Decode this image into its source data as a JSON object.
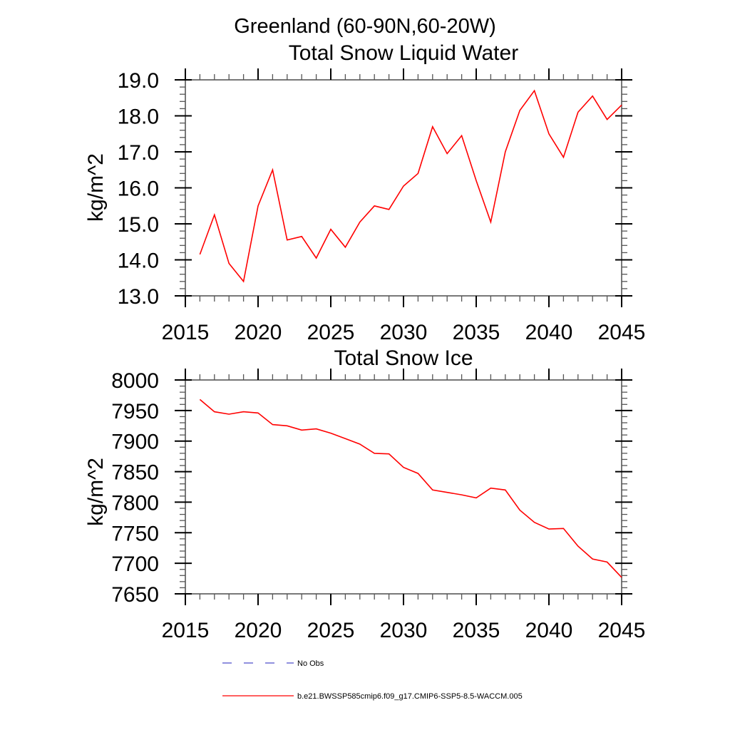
{
  "header": {
    "region_title": "Greenland (60-90N,60-20W)"
  },
  "chart_data": [
    {
      "type": "line",
      "title": "Total Snow Liquid Water",
      "ylabel": "kg/m^2",
      "xlim": [
        2015,
        2045
      ],
      "ylim": [
        13.0,
        19.0
      ],
      "grid": false,
      "legend_position": "bottom",
      "xticks": {
        "major": [
          2015,
          2020,
          2025,
          2030,
          2035,
          2040,
          2045
        ],
        "labels": [
          "2015",
          "2020",
          "2025",
          "2030",
          "2035",
          "2040",
          "2045"
        ],
        "minor_step": 1
      },
      "yticks": {
        "major": [
          13,
          14,
          15,
          16,
          17,
          18,
          19
        ],
        "labels": [
          "13.0",
          "14.0",
          "15.0",
          "16.0",
          "17.0",
          "18.0",
          "19.0"
        ],
        "minor_step": 0.2
      },
      "series": [
        {
          "name": "b.e21.BWSSP585cmip6.f09_g17.CMIP6-SSP5-8.5-WACCM.005",
          "color": "#FF0000",
          "x": [
            2016,
            2017,
            2018,
            2019,
            2020,
            2021,
            2022,
            2023,
            2024,
            2025,
            2026,
            2027,
            2028,
            2029,
            2030,
            2031,
            2032,
            2033,
            2034,
            2035,
            2036,
            2037,
            2038,
            2039,
            2040,
            2041,
            2042,
            2043,
            2044,
            2045
          ],
          "y": [
            14.15,
            15.25,
            13.9,
            13.4,
            15.5,
            16.5,
            14.55,
            14.65,
            14.05,
            14.85,
            14.35,
            15.05,
            15.5,
            15.4,
            16.05,
            16.4,
            17.7,
            16.95,
            17.45,
            16.2,
            15.05,
            17.0,
            18.15,
            18.7,
            17.5,
            16.85,
            18.1,
            18.55,
            17.9,
            18.3
          ]
        }
      ]
    },
    {
      "type": "line",
      "title": "Total Snow Ice",
      "ylabel": "kg/m^2",
      "xlim": [
        2015,
        2045
      ],
      "ylim": [
        7650,
        8000
      ],
      "grid": false,
      "legend_position": "bottom",
      "xticks": {
        "major": [
          2015,
          2020,
          2025,
          2030,
          2035,
          2040,
          2045
        ],
        "labels": [
          "2015",
          "2020",
          "2025",
          "2030",
          "2035",
          "2040",
          "2045"
        ],
        "minor_step": 1
      },
      "yticks": {
        "major": [
          7650,
          7700,
          7750,
          7800,
          7850,
          7900,
          7950,
          8000
        ],
        "labels": [
          "7650",
          "7700",
          "7750",
          "7800",
          "7850",
          "7900",
          "7950",
          "8000"
        ],
        "minor_step": 10
      },
      "series": [
        {
          "name": "b.e21.BWSSP585cmip6.f09_g17.CMIP6-SSP5-8.5-WACCM.005",
          "color": "#FF0000",
          "x": [
            2016,
            2017,
            2018,
            2019,
            2020,
            2021,
            2022,
            2023,
            2024,
            2025,
            2026,
            2027,
            2028,
            2029,
            2030,
            2031,
            2032,
            2033,
            2034,
            2035,
            2036,
            2037,
            2038,
            2039,
            2040,
            2041,
            2042,
            2043,
            2044,
            2045
          ],
          "y": [
            7968,
            7948,
            7944,
            7948,
            7946,
            7927,
            7925,
            7918,
            7920,
            7913,
            7904,
            7895,
            7880,
            7879,
            7857,
            7847,
            7820,
            7816,
            7812,
            7807,
            7823,
            7820,
            7787,
            7767,
            7756,
            7757,
            7728,
            7707,
            7702,
            7677
          ]
        }
      ]
    }
  ],
  "legend": {
    "items": [
      {
        "label": "No Obs",
        "color": "#6C6CD4",
        "style": "dashed"
      },
      {
        "label": "b.e21.BWSSP585cmip6.f09_g17.CMIP6-SSP5-8.5-WACCM.005",
        "color": "#FF0000",
        "style": "solid"
      }
    ]
  }
}
